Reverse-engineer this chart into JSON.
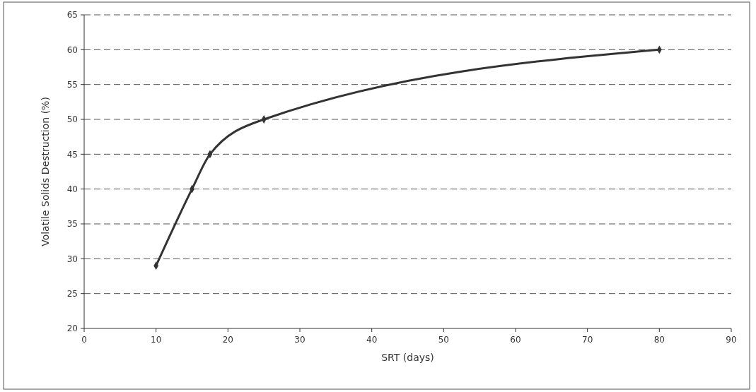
{
  "chart_data": {
    "type": "line",
    "xlabel": "SRT  (days)",
    "ylabel": "Volatile Solids Destruction (%)",
    "x": [
      10,
      15,
      17.5,
      25,
      80
    ],
    "series": [
      {
        "color": "#333333",
        "values": [
          29,
          40,
          45,
          50,
          60
        ]
      }
    ],
    "xlim": [
      0,
      90
    ],
    "xticks": [
      0,
      10,
      20,
      30,
      40,
      50,
      60,
      70,
      80,
      90
    ],
    "ylim": [
      20,
      65
    ],
    "yticks": [
      20,
      25,
      30,
      35,
      40,
      45,
      50,
      55,
      60,
      65
    ],
    "grid": "y",
    "marker": "diamond",
    "line_style": "solid"
  }
}
